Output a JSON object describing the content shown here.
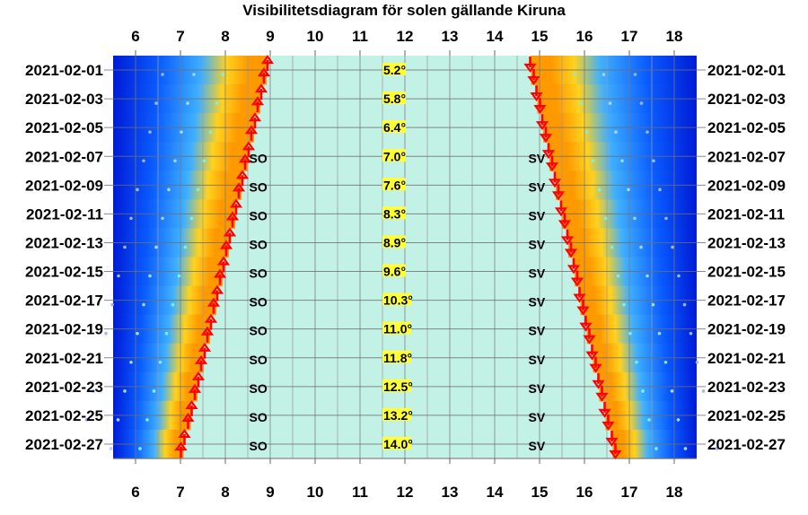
{
  "chart_data": {
    "type": "visibility-diagram",
    "title": "Visibilitetsdiagram för solen gällande Kiruna",
    "x_axis": {
      "range": [
        5.5,
        18.5
      ],
      "ticks": [
        6,
        7,
        8,
        9,
        10,
        11,
        12,
        13,
        14,
        15,
        16,
        17,
        18
      ]
    },
    "dates": [
      "2021-02-01",
      "2021-02-03",
      "2021-02-05",
      "2021-02-07",
      "2021-02-09",
      "2021-02-11",
      "2021-02-13",
      "2021-02-15",
      "2021-02-17",
      "2021-02-19",
      "2021-02-21",
      "2021-02-23",
      "2021-02-25",
      "2021-02-27"
    ],
    "max_elevation": [
      "5.2°",
      "5.8°",
      "6.4°",
      "7.0°",
      "7.6°",
      "8.3°",
      "8.9°",
      "9.6°",
      "10.3°",
      "11.0°",
      "11.8°",
      "12.5°",
      "13.2°",
      "14.0°"
    ],
    "rise_direction": [
      "",
      "",
      "",
      "SO",
      "SO",
      "SO",
      "SO",
      "SO",
      "SO",
      "SO",
      "SO",
      "SO",
      "SO",
      "SO"
    ],
    "set_direction": [
      "",
      "",
      "",
      "SV",
      "SV",
      "SV",
      "SV",
      "SV",
      "SV",
      "SV",
      "SV",
      "SV",
      "SV",
      "SV"
    ],
    "sunrise_hours": [
      8.9,
      8.76,
      8.62,
      8.48,
      8.34,
      8.2,
      8.06,
      7.92,
      7.78,
      7.64,
      7.5,
      7.36,
      7.21,
      7.05
    ],
    "sunset_hours": [
      14.83,
      14.97,
      15.1,
      15.24,
      15.38,
      15.52,
      15.66,
      15.8,
      15.93,
      16.07,
      16.21,
      16.35,
      16.49,
      16.65
    ],
    "colors": {
      "daylight": "#c2f2e6",
      "twilight_orange": "#ff9900",
      "twilight_yellow": "#ffd21e",
      "night_blue": "#001bd6",
      "elevation_highlight": "#ffff33",
      "arrow": "#ff0000"
    }
  }
}
